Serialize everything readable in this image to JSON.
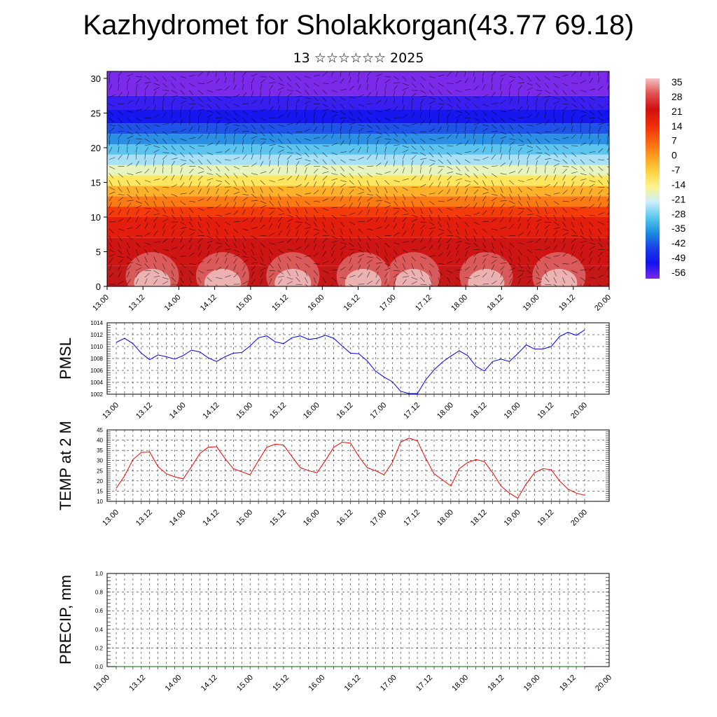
{
  "header": {
    "title": "Kazhydromet for Sholakkorgan(43.77 69.18)",
    "subtitle": "13 ☆☆☆☆☆☆ 2025"
  },
  "colors": {
    "pmsl_line": "#0000ff",
    "temp_line": "#ff0000",
    "precip_line": "#006400",
    "axes": "#000000"
  },
  "chart_data": [
    {
      "type": "heatmap",
      "name": "cross-section",
      "x_ticks": [
        "13.00",
        "13.12",
        "14.00",
        "14.12",
        "15.00",
        "15.12",
        "16.00",
        "16.12",
        "17.00",
        "17.12",
        "18.00",
        "18.12",
        "19.00",
        "19.12",
        "20.00"
      ],
      "y_ticks": [
        0,
        5,
        10,
        15,
        20,
        25,
        30
      ],
      "ylim": [
        0,
        31
      ],
      "colorbar": {
        "labels": [
          "35",
          "28",
          "21",
          "14",
          "7",
          "0",
          "-7",
          "-14",
          "-21",
          "-28",
          "-35",
          "-42",
          "-49",
          "-56"
        ],
        "colors": [
          "#f4c0c0",
          "#e05050",
          "#d01010",
          "#ee2a0a",
          "#f86010",
          "#fd9a20",
          "#ffd040",
          "#fff38a",
          "#cfeefa",
          "#5cc8ee",
          "#1a90e0",
          "#1a40e6",
          "#1212f0",
          "#7a28e8"
        ]
      },
      "vectors": "wind barbs/arrows overlaid"
    },
    {
      "type": "line",
      "name": "PMSL",
      "ylabel": "PMSL",
      "x_ticks": [
        "13.00",
        "13.12",
        "14.00",
        "14.12",
        "15.00",
        "15.12",
        "16.00",
        "16.12",
        "17.00",
        "17.12",
        "18.00",
        "18.12",
        "19.00",
        "19.12",
        "20.00"
      ],
      "y_ticks": [
        1002,
        1004,
        1006,
        1008,
        1010,
        1012,
        1014
      ],
      "ylim": [
        1002,
        1014
      ],
      "grid": true,
      "values": [
        1010.7,
        1011.4,
        1010.5,
        1008.9,
        1007.8,
        1008.6,
        1008.3,
        1007.9,
        1008.5,
        1009.4,
        1009.1,
        1008.1,
        1007.5,
        1008.3,
        1008.9,
        1009,
        1010.1,
        1011.5,
        1011.8,
        1010.8,
        1010.5,
        1011.5,
        1011.8,
        1011.2,
        1011.4,
        1011.9,
        1011.4,
        1010.1,
        1008.9,
        1008.8,
        1007.6,
        1005.9,
        1004.9,
        1004.1,
        1002.5,
        1002.1,
        1002.1,
        1004.4,
        1006.1,
        1007.4,
        1008.4,
        1009.3,
        1008.5,
        1006.7,
        1005.9,
        1007.5,
        1007.9,
        1007.5,
        1008.8,
        1010.3,
        1009.6,
        1009.6,
        1010,
        1011.7,
        1012.4,
        1011.9,
        1012.8
      ]
    },
    {
      "type": "line",
      "name": "TEMP",
      "ylabel": "TEMP at 2 M",
      "x_ticks": [
        "13.00",
        "13.12",
        "14.00",
        "14.12",
        "15.00",
        "15.12",
        "16.00",
        "16.12",
        "17.00",
        "17.12",
        "18.00",
        "18.12",
        "19.00",
        "19.12",
        "20.00"
      ],
      "y_ticks": [
        10,
        15,
        20,
        25,
        30,
        35,
        40,
        45
      ],
      "ylim": [
        10,
        45
      ],
      "grid": true,
      "values": [
        16.5,
        22.5,
        30.5,
        34,
        34.2,
        27,
        23.5,
        22,
        21,
        27,
        33.5,
        36.5,
        36.8,
        31,
        26,
        24.5,
        23,
        30,
        36.5,
        38,
        37.6,
        32,
        26.5,
        25,
        24,
        30,
        36.5,
        39,
        38.6,
        32,
        26.5,
        25,
        23,
        29,
        39,
        41,
        39.6,
        31,
        23.5,
        20.5,
        17.5,
        26,
        29,
        30.5,
        29.5,
        24,
        17.5,
        14,
        11.5,
        18.5,
        24,
        26,
        25.5,
        20,
        16,
        14,
        13
      ]
    },
    {
      "type": "line",
      "name": "PRECIP",
      "ylabel": "PRECIP, mm",
      "x_ticks": [
        "13.00",
        "13.12",
        "14.00",
        "14.12",
        "15.00",
        "15.12",
        "16.00",
        "16.12",
        "17.00",
        "17.12",
        "18.00",
        "18.12",
        "19.00",
        "19.12",
        "20.00"
      ],
      "y_ticks": [
        "0.0",
        "0.2",
        "0.4",
        "0.6",
        "0.8",
        "1.0"
      ],
      "ylim": [
        0,
        1
      ],
      "grid": true,
      "values": [
        0,
        0,
        0,
        0,
        0,
        0,
        0,
        0,
        0,
        0,
        0,
        0,
        0,
        0,
        0,
        0,
        0,
        0,
        0,
        0,
        0,
        0,
        0,
        0,
        0,
        0,
        0,
        0,
        0,
        0,
        0,
        0,
        0,
        0,
        0,
        0,
        0,
        0,
        0,
        0,
        0,
        0,
        0,
        0,
        0,
        0,
        0,
        0,
        0,
        0,
        0,
        0,
        0,
        0,
        0,
        0,
        0
      ]
    }
  ]
}
